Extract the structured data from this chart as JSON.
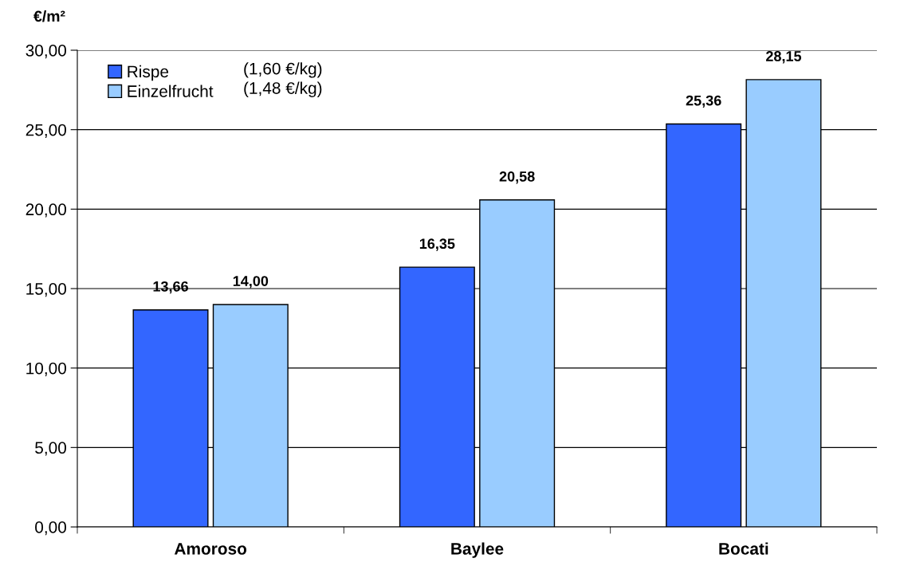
{
  "chart_data": {
    "type": "bar",
    "ylabel": "€/m²",
    "categories": [
      "Amoroso",
      "Baylee",
      "Bocati"
    ],
    "series": [
      {
        "name": "Rispe",
        "color": "#3366ff",
        "values": [
          13.66,
          16.35,
          25.36
        ],
        "value_labels": [
          "13,66",
          "16,35",
          "25,36"
        ]
      },
      {
        "name": "Einzelfrucht",
        "color": "#99ccff",
        "values": [
          14.0,
          20.58,
          28.15
        ],
        "value_labels": [
          "14,00",
          "20,58",
          "28,15"
        ]
      }
    ],
    "annotations": [
      "(1,60 €/kg)",
      "(1,48 €/kg)"
    ],
    "ylim": [
      0,
      30
    ],
    "yticks": [
      {
        "value": 0,
        "label": "0,00"
      },
      {
        "value": 5,
        "label": "5,00"
      },
      {
        "value": 10,
        "label": "10,00"
      },
      {
        "value": 15,
        "label": "15,00"
      },
      {
        "value": 20,
        "label": "20,00"
      },
      {
        "value": 25,
        "label": "25,00"
      },
      {
        "value": 30,
        "label": "30,00"
      }
    ],
    "grid": "y",
    "legend": "top left"
  }
}
